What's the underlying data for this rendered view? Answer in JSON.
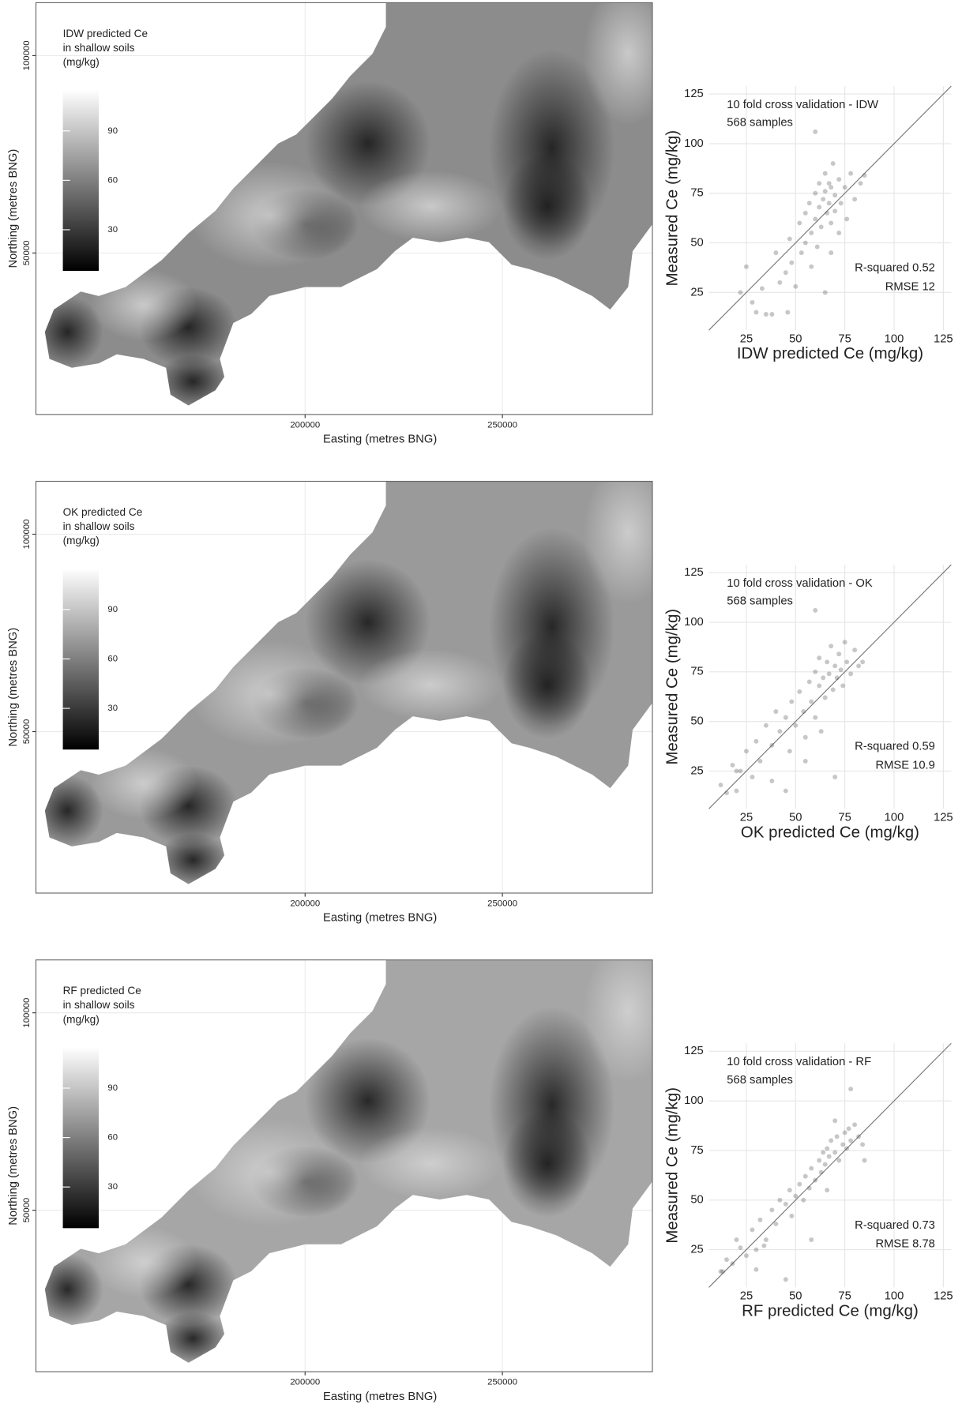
{
  "chart_data": [
    {
      "type": "map",
      "legend_title": [
        "IDW predicted Ce",
        "in shallow soils",
        "(mg/kg)"
      ],
      "colorbar_ticks": [
        30,
        60,
        90
      ],
      "colorbar_lim": [
        5,
        115
      ],
      "xlabel": "Easting (metres BNG)",
      "ylabel": "Northing (metres BNG)",
      "xlim": [
        131800,
        288000
      ],
      "ylim": [
        9100,
        113400
      ],
      "xticks": [
        200000,
        250000
      ],
      "yticks": [
        50000,
        100000
      ],
      "grid": true
    },
    {
      "type": "scatter",
      "annotations": [
        "10 fold cross validation - IDW",
        "568 samples",
        "R-squared 0.52",
        "RMSE 12"
      ],
      "xlabel": "IDW predicted Ce (mg/kg)",
      "ylabel": "Measured Ce (mg/kg)",
      "xlim": [
        6,
        129
      ],
      "ylim": [
        6,
        129
      ],
      "xticks": [
        25,
        50,
        75,
        100,
        125
      ],
      "yticks": [
        25,
        50,
        75,
        100,
        125
      ],
      "grid": true,
      "color": "#444444",
      "x": [
        22,
        25,
        28,
        33,
        35,
        38,
        40,
        42,
        45,
        47,
        48,
        50,
        52,
        53,
        55,
        55,
        57,
        58,
        58,
        60,
        60,
        61,
        62,
        62,
        63,
        64,
        65,
        65,
        66,
        67,
        67,
        68,
        68,
        69,
        70,
        70,
        72,
        73,
        75,
        76,
        78,
        80,
        83,
        85,
        60,
        68,
        72,
        46,
        30,
        65
      ],
      "values": [
        25,
        38,
        20,
        27,
        14,
        14,
        45,
        30,
        35,
        52,
        40,
        28,
        60,
        45,
        65,
        50,
        70,
        55,
        38,
        75,
        62,
        48,
        80,
        68,
        58,
        72,
        85,
        76,
        65,
        80,
        70,
        60,
        78,
        90,
        74,
        66,
        82,
        70,
        78,
        62,
        85,
        72,
        80,
        84,
        106,
        45,
        55,
        15,
        15,
        25
      ]
    },
    {
      "type": "map",
      "legend_title": [
        "OK predicted Ce",
        "in shallow soils",
        "(mg/kg)"
      ],
      "colorbar_ticks": [
        30,
        60,
        90
      ],
      "colorbar_lim": [
        5,
        115
      ],
      "xlabel": "Easting (metres BNG)",
      "ylabel": "Northing (metres BNG)",
      "xlim": [
        131800,
        288000
      ],
      "ylim": [
        9100,
        113400
      ],
      "xticks": [
        200000,
        250000
      ],
      "yticks": [
        50000,
        100000
      ],
      "grid": true
    },
    {
      "type": "scatter",
      "annotations": [
        "10 fold cross validation - OK",
        "568 samples",
        "R-squared 0.59",
        "RMSE 10.9"
      ],
      "xlabel": "OK predicted Ce (mg/kg)",
      "ylabel": "Measured Ce (mg/kg)",
      "xlim": [
        6,
        129
      ],
      "ylim": [
        6,
        129
      ],
      "xticks": [
        25,
        50,
        75,
        100,
        125
      ],
      "yticks": [
        25,
        50,
        75,
        100,
        125
      ],
      "grid": true,
      "color": "#444444",
      "x": [
        12,
        15,
        18,
        20,
        22,
        25,
        28,
        30,
        32,
        35,
        38,
        40,
        42,
        45,
        47,
        48,
        50,
        52,
        54,
        55,
        57,
        58,
        60,
        60,
        62,
        62,
        64,
        65,
        66,
        67,
        68,
        69,
        70,
        71,
        72,
        73,
        74,
        75,
        76,
        78,
        80,
        82,
        84,
        60,
        70,
        45,
        20,
        38,
        55,
        63
      ],
      "values": [
        18,
        14,
        28,
        15,
        25,
        35,
        22,
        40,
        30,
        48,
        38,
        55,
        45,
        52,
        35,
        60,
        48,
        65,
        55,
        42,
        70,
        60,
        75,
        52,
        82,
        68,
        72,
        62,
        80,
        74,
        88,
        66,
        78,
        72,
        84,
        76,
        68,
        90,
        80,
        74,
        86,
        78,
        80,
        106,
        22,
        15,
        25,
        20,
        30,
        45
      ]
    },
    {
      "type": "map",
      "legend_title": [
        "RF predicted Ce",
        "in shallow soils",
        "(mg/kg)"
      ],
      "colorbar_ticks": [
        30,
        60,
        90
      ],
      "colorbar_lim": [
        5,
        115
      ],
      "xlabel": "Easting (metres BNG)",
      "ylabel": "Northing (metres BNG)",
      "xlim": [
        131800,
        288000
      ],
      "ylim": [
        9100,
        113400
      ],
      "xticks": [
        200000,
        250000
      ],
      "yticks": [
        50000,
        100000
      ],
      "grid": true
    },
    {
      "type": "scatter",
      "annotations": [
        "10 fold cross validation - RF",
        "568 samples",
        "R-squared 0.73",
        "RMSE 8.78"
      ],
      "xlabel": "RF predicted Ce (mg/kg)",
      "ylabel": "Measured Ce (mg/kg)",
      "xlim": [
        6,
        129
      ],
      "ylim": [
        6,
        129
      ],
      "xticks": [
        25,
        50,
        75,
        100,
        125
      ],
      "yticks": [
        25,
        50,
        75,
        100,
        125
      ],
      "grid": true,
      "color": "#444444",
      "x": [
        12,
        15,
        18,
        20,
        22,
        25,
        28,
        30,
        32,
        35,
        38,
        40,
        42,
        45,
        47,
        48,
        50,
        52,
        54,
        55,
        57,
        58,
        60,
        62,
        63,
        64,
        65,
        66,
        67,
        68,
        70,
        71,
        72,
        74,
        75,
        76,
        77,
        78,
        80,
        82,
        84,
        78,
        45,
        30,
        58,
        85,
        70,
        13,
        34,
        66
      ],
      "values": [
        14,
        20,
        18,
        30,
        26,
        22,
        35,
        15,
        40,
        30,
        45,
        38,
        50,
        48,
        55,
        42,
        52,
        58,
        50,
        62,
        56,
        66,
        60,
        70,
        64,
        74,
        68,
        76,
        72,
        80,
        74,
        82,
        70,
        78,
        84,
        76,
        86,
        80,
        88,
        82,
        78,
        106,
        10,
        25,
        30,
        70,
        90,
        14,
        27,
        55
      ]
    }
  ]
}
